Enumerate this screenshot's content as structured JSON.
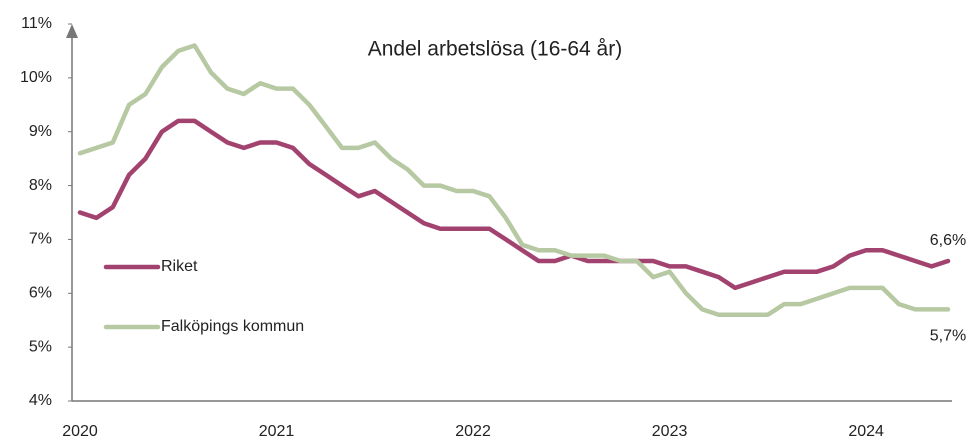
{
  "chart_data": {
    "type": "line",
    "title": "Andel arbetslösa (16-64 år)",
    "categories": [
      "2020",
      null,
      null,
      null,
      null,
      null,
      null,
      null,
      null,
      null,
      null,
      null,
      "2021",
      null,
      null,
      null,
      null,
      null,
      null,
      null,
      null,
      null,
      null,
      null,
      "2022",
      null,
      null,
      null,
      null,
      null,
      null,
      null,
      null,
      null,
      null,
      null,
      "2023",
      null,
      null,
      null,
      null,
      null,
      null,
      null,
      null,
      null,
      null,
      null,
      "2024",
      null,
      null,
      null,
      null,
      null
    ],
    "series": [
      {
        "name": "Riket",
        "color": "#a2426f",
        "values": [
          7.5,
          7.4,
          7.6,
          8.2,
          8.5,
          9.0,
          9.2,
          9.2,
          9.0,
          8.8,
          8.7,
          8.8,
          8.8,
          8.7,
          8.4,
          8.2,
          8.0,
          7.8,
          7.9,
          7.7,
          7.5,
          7.3,
          7.2,
          7.2,
          7.2,
          7.2,
          7.0,
          6.8,
          6.6,
          6.6,
          6.7,
          6.6,
          6.6,
          6.6,
          6.6,
          6.6,
          6.5,
          6.5,
          6.4,
          6.3,
          6.1,
          6.2,
          6.3,
          6.4,
          6.4,
          6.4,
          6.5,
          6.7,
          6.8,
          6.8,
          6.7,
          6.6,
          6.5,
          6.6
        ],
        "value_labels": [
          null,
          null,
          null,
          null,
          null,
          null,
          null,
          null,
          null,
          null,
          null,
          null,
          null,
          null,
          null,
          null,
          null,
          null,
          null,
          null,
          null,
          null,
          null,
          null,
          null,
          null,
          null,
          null,
          null,
          null,
          null,
          null,
          null,
          null,
          null,
          null,
          null,
          null,
          null,
          null,
          null,
          null,
          null,
          null,
          null,
          null,
          null,
          null,
          null,
          null,
          null,
          null,
          null,
          "6,6%"
        ]
      },
      {
        "name": "Falköpings kommun",
        "color": "#b6c9a2",
        "values": [
          8.6,
          8.7,
          8.8,
          9.5,
          9.7,
          10.2,
          10.5,
          10.6,
          10.1,
          9.8,
          9.7,
          9.9,
          9.8,
          9.8,
          9.5,
          9.1,
          8.7,
          8.7,
          8.8,
          8.5,
          8.3,
          8.0,
          8.0,
          7.9,
          7.9,
          7.8,
          7.4,
          6.9,
          6.8,
          6.8,
          6.7,
          6.7,
          6.7,
          6.6,
          6.6,
          6.3,
          6.4,
          6.0,
          5.7,
          5.6,
          5.6,
          5.6,
          5.6,
          5.8,
          5.8,
          5.9,
          6.0,
          6.1,
          6.1,
          6.1,
          5.8,
          5.7,
          5.7,
          5.7
        ],
        "value_labels": [
          null,
          null,
          null,
          null,
          null,
          null,
          null,
          null,
          null,
          null,
          null,
          null,
          null,
          null,
          null,
          null,
          null,
          null,
          null,
          null,
          null,
          null,
          null,
          null,
          null,
          null,
          null,
          null,
          null,
          null,
          null,
          null,
          null,
          null,
          null,
          null,
          null,
          null,
          null,
          null,
          null,
          null,
          null,
          null,
          null,
          null,
          null,
          null,
          null,
          null,
          null,
          null,
          null,
          "5,7%"
        ]
      }
    ],
    "ylim": [
      4,
      11
    ],
    "yticks": [
      {
        "value": 4,
        "label": "4%"
      },
      {
        "value": 5,
        "label": "5%"
      },
      {
        "value": 6,
        "label": "6%"
      },
      {
        "value": 7,
        "label": "7%"
      },
      {
        "value": 8,
        "label": "8%"
      },
      {
        "value": 9,
        "label": "9%"
      },
      {
        "value": 10,
        "label": "10%"
      },
      {
        "value": 11,
        "label": "11%"
      }
    ]
  }
}
